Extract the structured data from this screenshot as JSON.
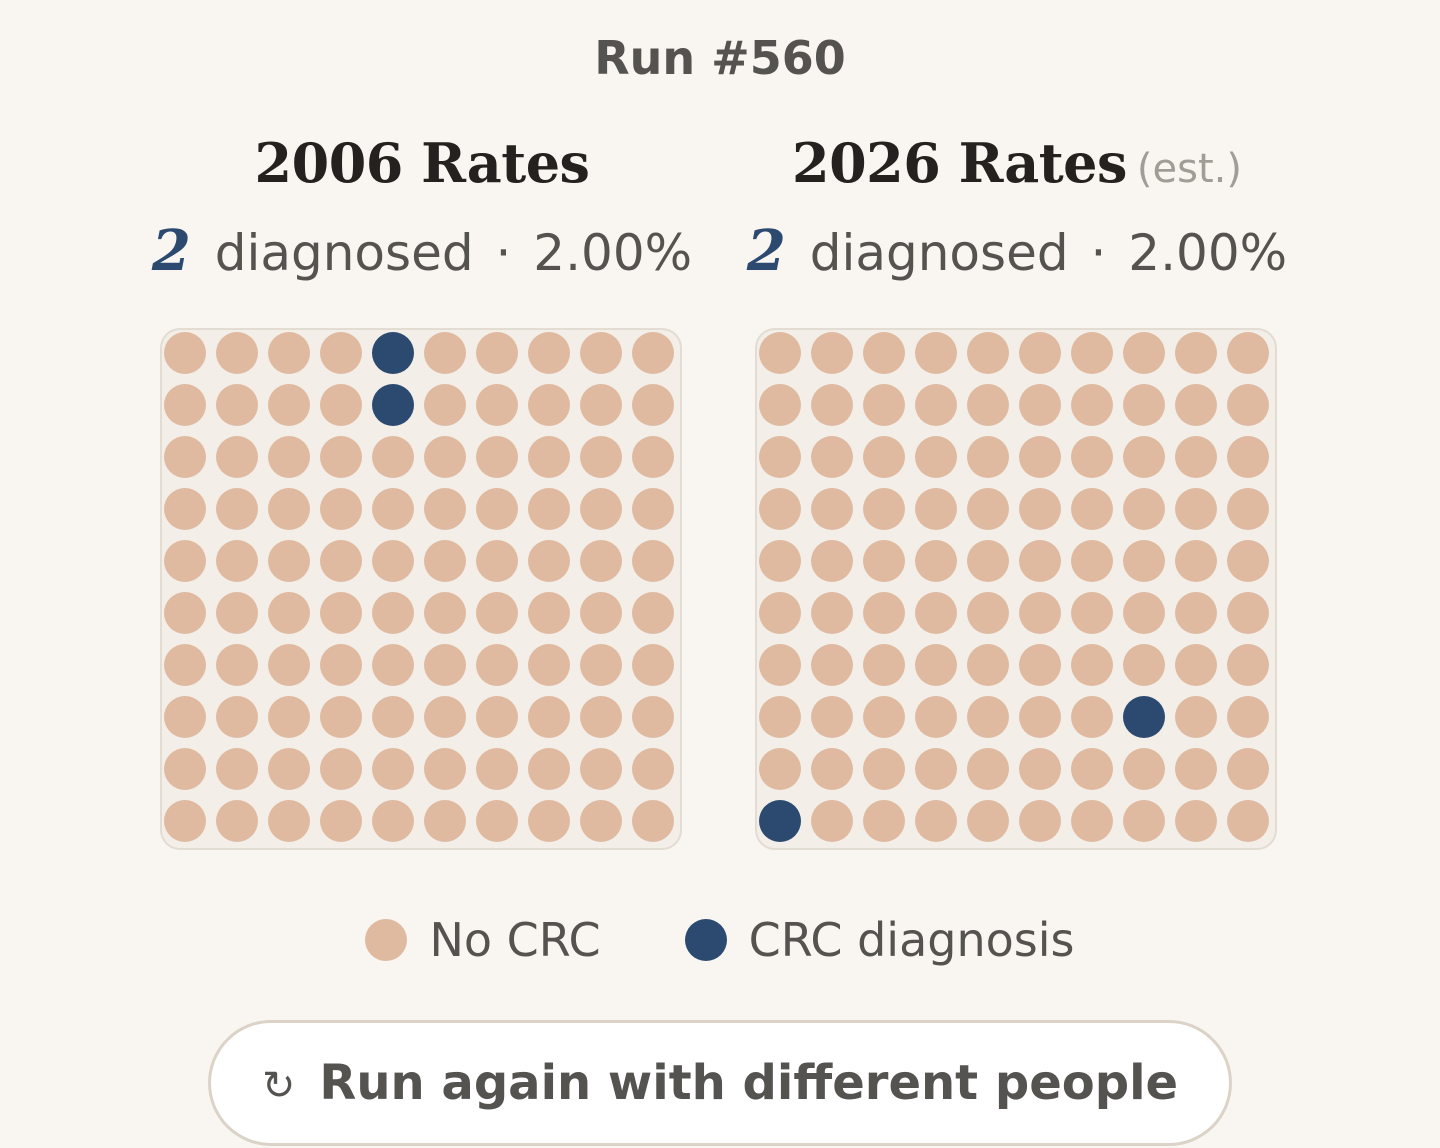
{
  "header": {
    "title": "Run #560"
  },
  "panels": [
    {
      "title": "2006 Rates",
      "suffix": "",
      "count": "2",
      "count_label": "diagnosed",
      "separator": "·",
      "percent": "2.00%"
    },
    {
      "title": "2026 Rates",
      "suffix": "(est.)",
      "count": "2",
      "count_label": "diagnosed",
      "separator": "·",
      "percent": "2.00%"
    }
  ],
  "chart_data": [
    {
      "type": "waffle",
      "title": "2006 Rates",
      "rows": 10,
      "cols": 10,
      "total": 100,
      "diagnosed": 2,
      "diagnosed_cells": [
        [
          0,
          4
        ],
        [
          1,
          4
        ]
      ]
    },
    {
      "type": "waffle",
      "title": "2026 Rates (est.)",
      "rows": 10,
      "cols": 10,
      "total": 100,
      "diagnosed": 2,
      "diagnosed_cells": [
        [
          7,
          7
        ],
        [
          9,
          0
        ]
      ]
    }
  ],
  "legend": {
    "items": [
      {
        "label": "No CRC",
        "color": "#dfbaa0"
      },
      {
        "label": "CRC diagnosis",
        "color": "#2c4a70"
      }
    ]
  },
  "actions": {
    "refresh_icon": "↻",
    "run_again_label": "Run again with different people"
  },
  "colors": {
    "no_crc": "#dfbaa0",
    "crc": "#2c4a70",
    "background": "#f9f6f1"
  }
}
